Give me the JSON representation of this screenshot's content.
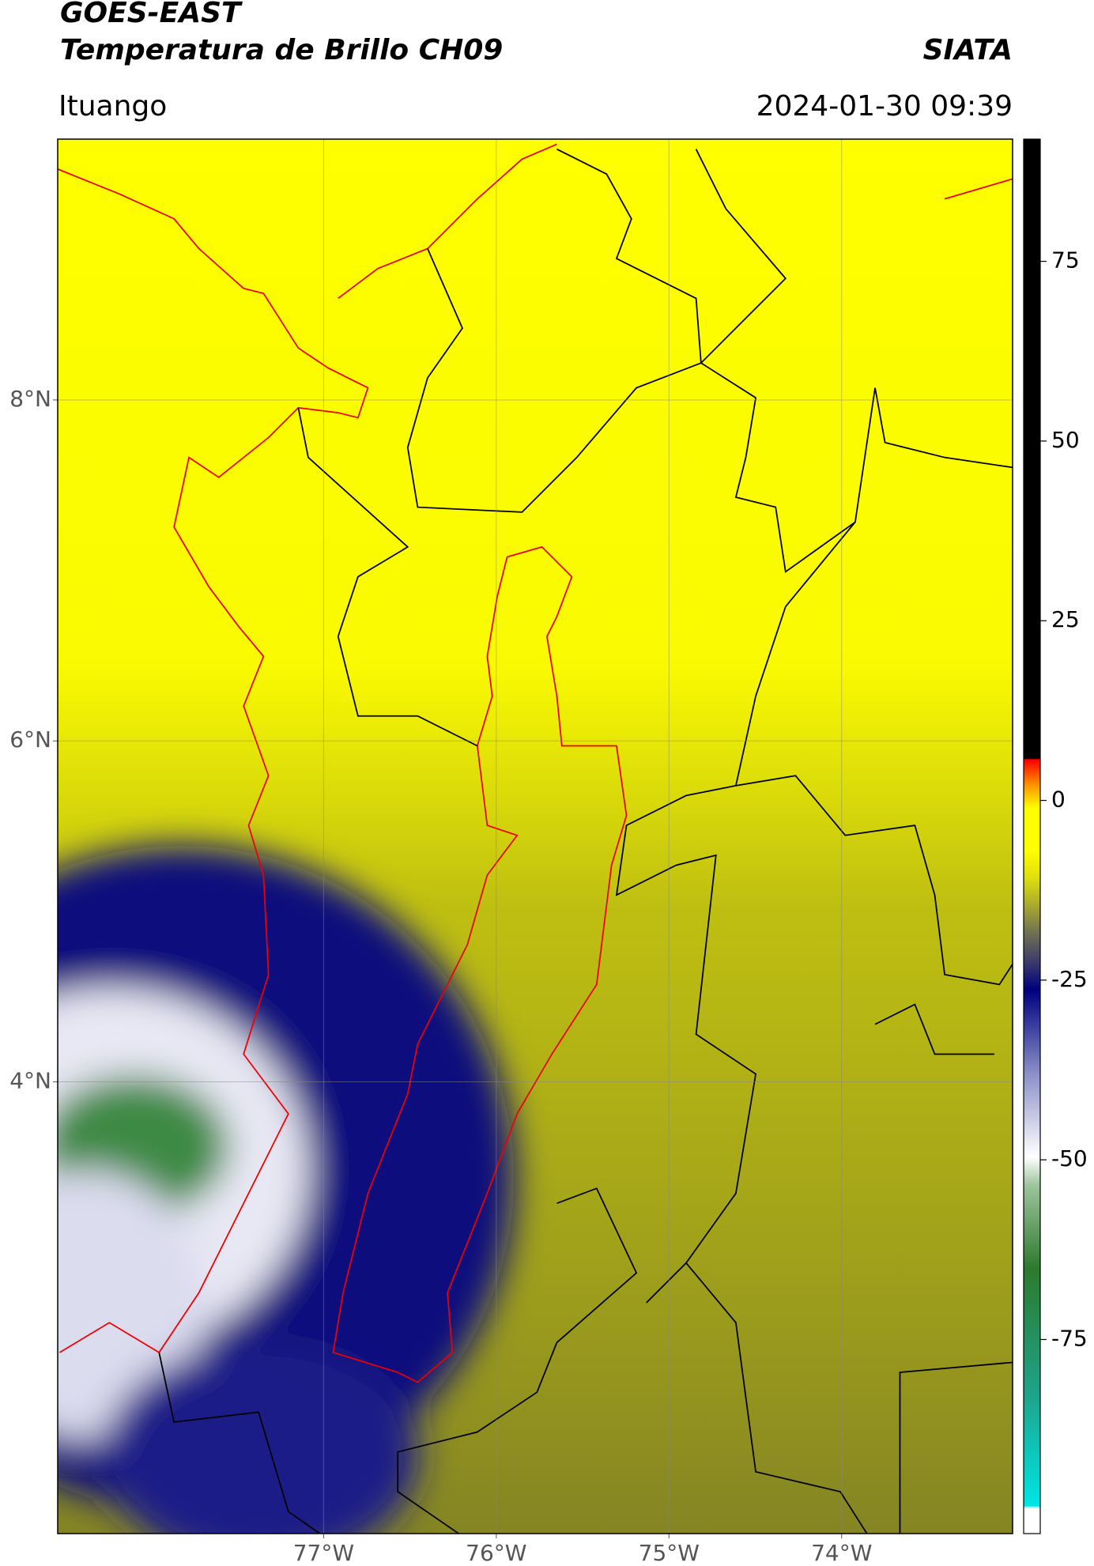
{
  "header": {
    "source": "GOES-EAST",
    "product": "Temperatura de Brillo CH09",
    "agency": "SIATA",
    "location": "Ituango",
    "timestamp": "2024-01-30 09:39"
  },
  "map": {
    "xlim": [
      -78.54,
      -73.01
    ],
    "ylim": [
      1.35,
      9.53
    ],
    "xticks": [
      {
        "value": -77,
        "label": "77°W"
      },
      {
        "value": -76,
        "label": "76°W"
      },
      {
        "value": -75,
        "label": "75°W"
      },
      {
        "value": -74,
        "label": "74°W"
      }
    ],
    "yticks": [
      {
        "value": 8,
        "label": "8°N"
      },
      {
        "value": 6,
        "label": "6°N"
      },
      {
        "value": 4,
        "label": "4°N"
      }
    ],
    "grid": true
  },
  "colorbar": {
    "clim": [
      -102,
      92
    ],
    "ticks": [
      75,
      50,
      25,
      0,
      -25,
      -50,
      -75
    ]
  }
}
